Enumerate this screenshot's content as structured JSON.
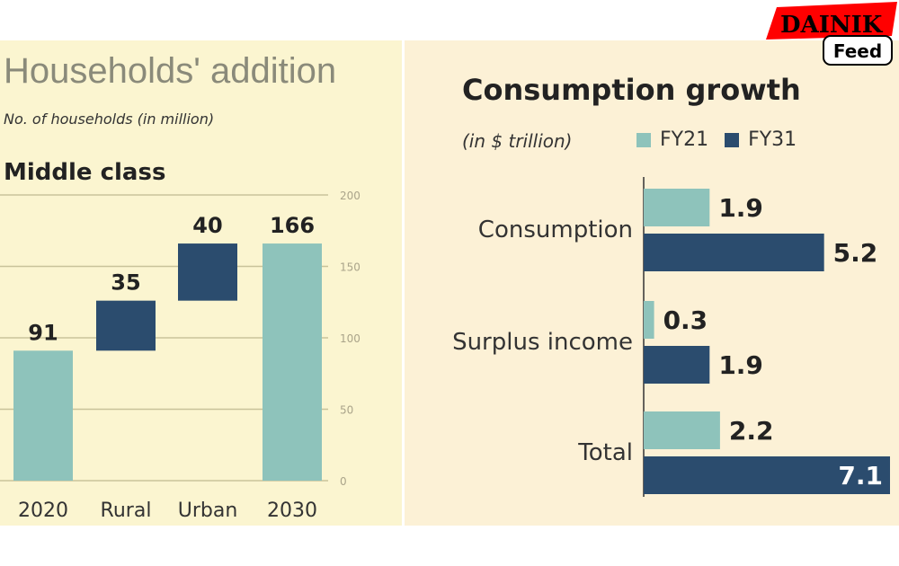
{
  "logo": {
    "line1": "DAINIK",
    "line2": "Feed"
  },
  "colors": {
    "light": "#8ec3bb",
    "dark": "#2b4c6e",
    "grid": "#c9c39a"
  },
  "chart_data": [
    {
      "type": "bar",
      "subtype": "waterfall",
      "title": "Households' addition",
      "subtitle": "No. of households (in million)",
      "section": "Middle class",
      "categories": [
        "2020",
        "Rural",
        "Urban",
        "2030"
      ],
      "values": [
        91,
        35,
        40,
        166
      ],
      "labels": [
        "91",
        "35",
        "40",
        "166"
      ],
      "kind": [
        "total",
        "increment",
        "increment",
        "total"
      ],
      "ylim": [
        0,
        200
      ],
      "yticks": [
        "0",
        "50",
        "100",
        "150",
        "200"
      ],
      "grid": true
    },
    {
      "type": "bar",
      "orientation": "horizontal",
      "title": "Consumption growth",
      "unit": "(in $ trillion)",
      "categories": [
        "Consumption",
        "Surplus income",
        "Total"
      ],
      "series": [
        {
          "name": "FY21",
          "values": [
            1.9,
            0.3,
            2.2
          ],
          "labels": [
            "1.9",
            "0.3",
            "2.2"
          ]
        },
        {
          "name": "FY31",
          "values": [
            5.2,
            1.9,
            7.1
          ],
          "labels": [
            "5.2",
            "1.9",
            "7.1"
          ]
        }
      ],
      "xlim": [
        0,
        7.1
      ],
      "legend": "top"
    }
  ]
}
